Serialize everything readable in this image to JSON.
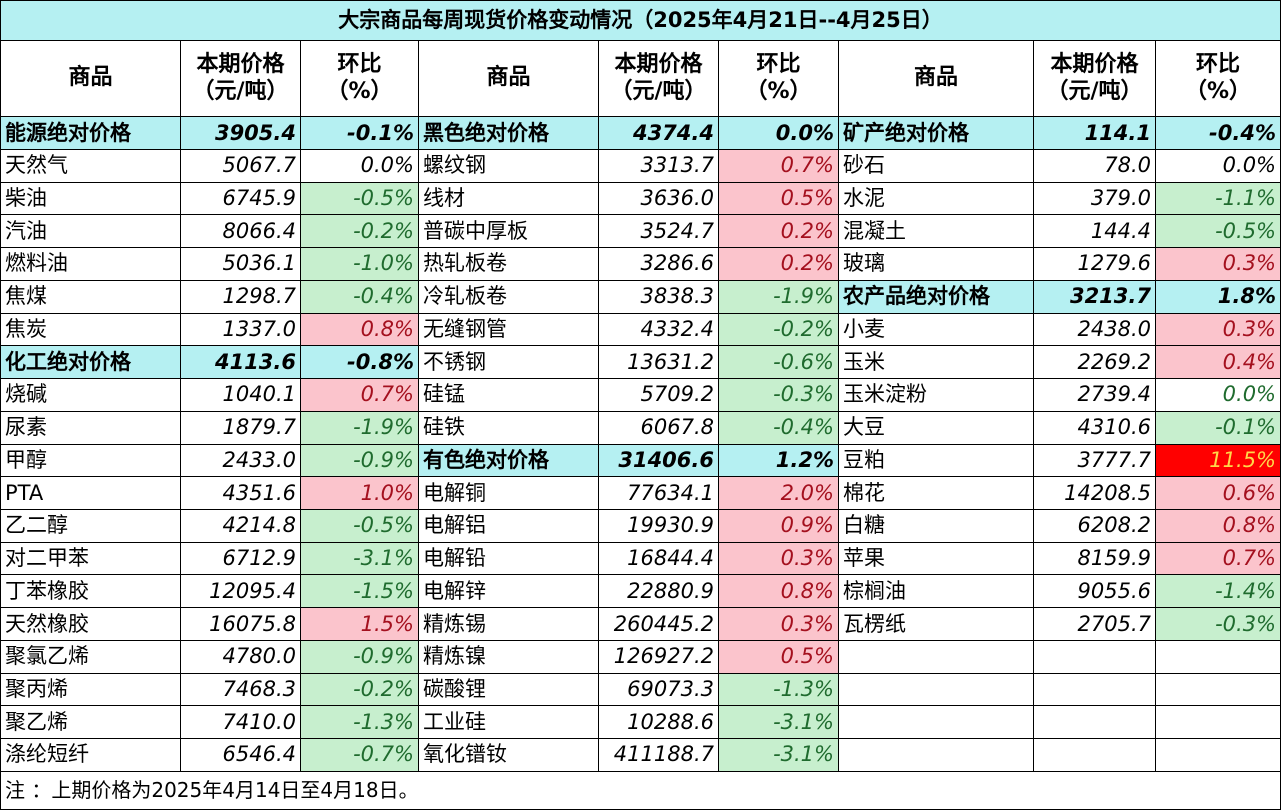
{
  "title": "大宗商品每周现货价格变动情况（2025年4月21日--4月25日）",
  "headers": {
    "name": "商品",
    "price_l1": "本期价格",
    "price_l2": "（元/吨）",
    "change_l1": "环比",
    "change_l2": "（%）"
  },
  "rows": [
    [
      {
        "name": "能源绝对价格",
        "price": "3905.4",
        "change": "-0.1%",
        "agg": true
      },
      {
        "name": "黑色绝对价格",
        "price": "4374.4",
        "change": "0.0%",
        "agg": true
      },
      {
        "name": "矿产绝对价格",
        "price": "114.1",
        "change": "-0.4%",
        "agg": true
      }
    ],
    [
      {
        "name": "天然气",
        "price": "5067.7",
        "change": "0.0%",
        "status": "neutral"
      },
      {
        "name": "螺纹钢",
        "price": "3313.7",
        "change": "0.7%",
        "status": "up"
      },
      {
        "name": "砂石",
        "price": "78.0",
        "change": "0.0%",
        "status": "neutral"
      }
    ],
    [
      {
        "name": "柴油",
        "price": "6745.9",
        "change": "-0.5%",
        "status": "down"
      },
      {
        "name": "线材",
        "price": "3636.0",
        "change": "0.5%",
        "status": "up"
      },
      {
        "name": "水泥",
        "price": "379.0",
        "change": "-1.1%",
        "status": "down"
      }
    ],
    [
      {
        "name": "汽油",
        "price": "8066.4",
        "change": "-0.2%",
        "status": "down"
      },
      {
        "name": "普碳中厚板",
        "price": "3524.7",
        "change": "0.2%",
        "status": "up"
      },
      {
        "name": "混凝土",
        "price": "144.4",
        "change": "-0.5%",
        "status": "down"
      }
    ],
    [
      {
        "name": "燃料油",
        "price": "5036.1",
        "change": "-1.0%",
        "status": "down"
      },
      {
        "name": "热轧板卷",
        "price": "3286.6",
        "change": "0.2%",
        "status": "up"
      },
      {
        "name": "玻璃",
        "price": "1279.6",
        "change": "0.3%",
        "status": "up"
      }
    ],
    [
      {
        "name": "焦煤",
        "price": "1298.7",
        "change": "-0.4%",
        "status": "down"
      },
      {
        "name": "冷轧板卷",
        "price": "3838.3",
        "change": "-1.9%",
        "status": "down"
      },
      {
        "name": "农产品绝对价格",
        "price": "3213.7",
        "change": "1.8%",
        "agg": true
      }
    ],
    [
      {
        "name": "焦炭",
        "price": "1337.0",
        "change": "0.8%",
        "status": "up"
      },
      {
        "name": "无缝钢管",
        "price": "4332.4",
        "change": "-0.2%",
        "status": "down"
      },
      {
        "name": "小麦",
        "price": "2438.0",
        "change": "0.3%",
        "status": "up"
      }
    ],
    [
      {
        "name": "化工绝对价格",
        "price": "4113.6",
        "change": "-0.8%",
        "agg": true
      },
      {
        "name": "不锈钢",
        "price": "13631.2",
        "change": "-0.6%",
        "status": "down"
      },
      {
        "name": "玉米",
        "price": "2269.2",
        "change": "0.4%",
        "status": "up"
      }
    ],
    [
      {
        "name": "烧碱",
        "price": "1040.1",
        "change": "0.7%",
        "status": "up"
      },
      {
        "name": "硅锰",
        "price": "5709.2",
        "change": "-0.3%",
        "status": "down"
      },
      {
        "name": "玉米淀粉",
        "price": "2739.4",
        "change": "0.0%",
        "status": "flat"
      }
    ],
    [
      {
        "name": "尿素",
        "price": "1879.7",
        "change": "-1.9%",
        "status": "down"
      },
      {
        "name": "硅铁",
        "price": "6067.8",
        "change": "-0.4%",
        "status": "down"
      },
      {
        "name": "大豆",
        "price": "4310.6",
        "change": "-0.1%",
        "status": "down"
      }
    ],
    [
      {
        "name": "甲醇",
        "price": "2433.0",
        "change": "-0.9%",
        "status": "down"
      },
      {
        "name": "有色绝对价格",
        "price": "31406.6",
        "change": "1.2%",
        "agg": true
      },
      {
        "name": "豆粕",
        "price": "3777.7",
        "change": "11.5%",
        "status": "upbig"
      }
    ],
    [
      {
        "name": "PTA",
        "price": "4351.6",
        "change": "1.0%",
        "status": "up"
      },
      {
        "name": "电解铜",
        "price": "77634.1",
        "change": "2.0%",
        "status": "up"
      },
      {
        "name": "棉花",
        "price": "14208.5",
        "change": "0.6%",
        "status": "up"
      }
    ],
    [
      {
        "name": "乙二醇",
        "price": "4214.8",
        "change": "-0.5%",
        "status": "down"
      },
      {
        "name": "电解铝",
        "price": "19930.9",
        "change": "0.9%",
        "status": "up"
      },
      {
        "name": "白糖",
        "price": "6208.2",
        "change": "0.8%",
        "status": "up"
      }
    ],
    [
      {
        "name": "对二甲苯",
        "price": "6712.9",
        "change": "-3.1%",
        "status": "down"
      },
      {
        "name": "电解铅",
        "price": "16844.4",
        "change": "0.3%",
        "status": "up"
      },
      {
        "name": "苹果",
        "price": "8159.9",
        "change": "0.7%",
        "status": "up"
      }
    ],
    [
      {
        "name": "丁苯橡胶",
        "price": "12095.4",
        "change": "-1.5%",
        "status": "down"
      },
      {
        "name": "电解锌",
        "price": "22880.9",
        "change": "0.8%",
        "status": "up"
      },
      {
        "name": "棕榈油",
        "price": "9055.6",
        "change": "-1.4%",
        "status": "down"
      }
    ],
    [
      {
        "name": "天然橡胶",
        "price": "16075.8",
        "change": "1.5%",
        "status": "up"
      },
      {
        "name": "精炼锡",
        "price": "260445.2",
        "change": "0.3%",
        "status": "up"
      },
      {
        "name": "瓦楞纸",
        "price": "2705.7",
        "change": "-0.3%",
        "status": "down"
      }
    ],
    [
      {
        "name": "聚氯乙烯",
        "price": "4780.0",
        "change": "-0.9%",
        "status": "down"
      },
      {
        "name": "精炼镍",
        "price": "126927.2",
        "change": "0.5%",
        "status": "up"
      },
      null
    ],
    [
      {
        "name": "聚丙烯",
        "price": "7468.3",
        "change": "-0.2%",
        "status": "down"
      },
      {
        "name": "碳酸锂",
        "price": "69073.3",
        "change": "-1.3%",
        "status": "down"
      },
      null
    ],
    [
      {
        "name": "聚乙烯",
        "price": "7410.0",
        "change": "-1.3%",
        "status": "down"
      },
      {
        "name": "工业硅",
        "price": "10288.6",
        "change": "-3.1%",
        "status": "down"
      },
      null
    ],
    [
      {
        "name": "涤纶短纤",
        "price": "6546.4",
        "change": "-0.7%",
        "status": "down"
      },
      {
        "name": "氧化镨钕",
        "price": "411188.7",
        "change": "-3.1%",
        "status": "down"
      },
      null
    ]
  ],
  "note": "注 ：上期价格为2025年4月14日至4月18日。"
}
